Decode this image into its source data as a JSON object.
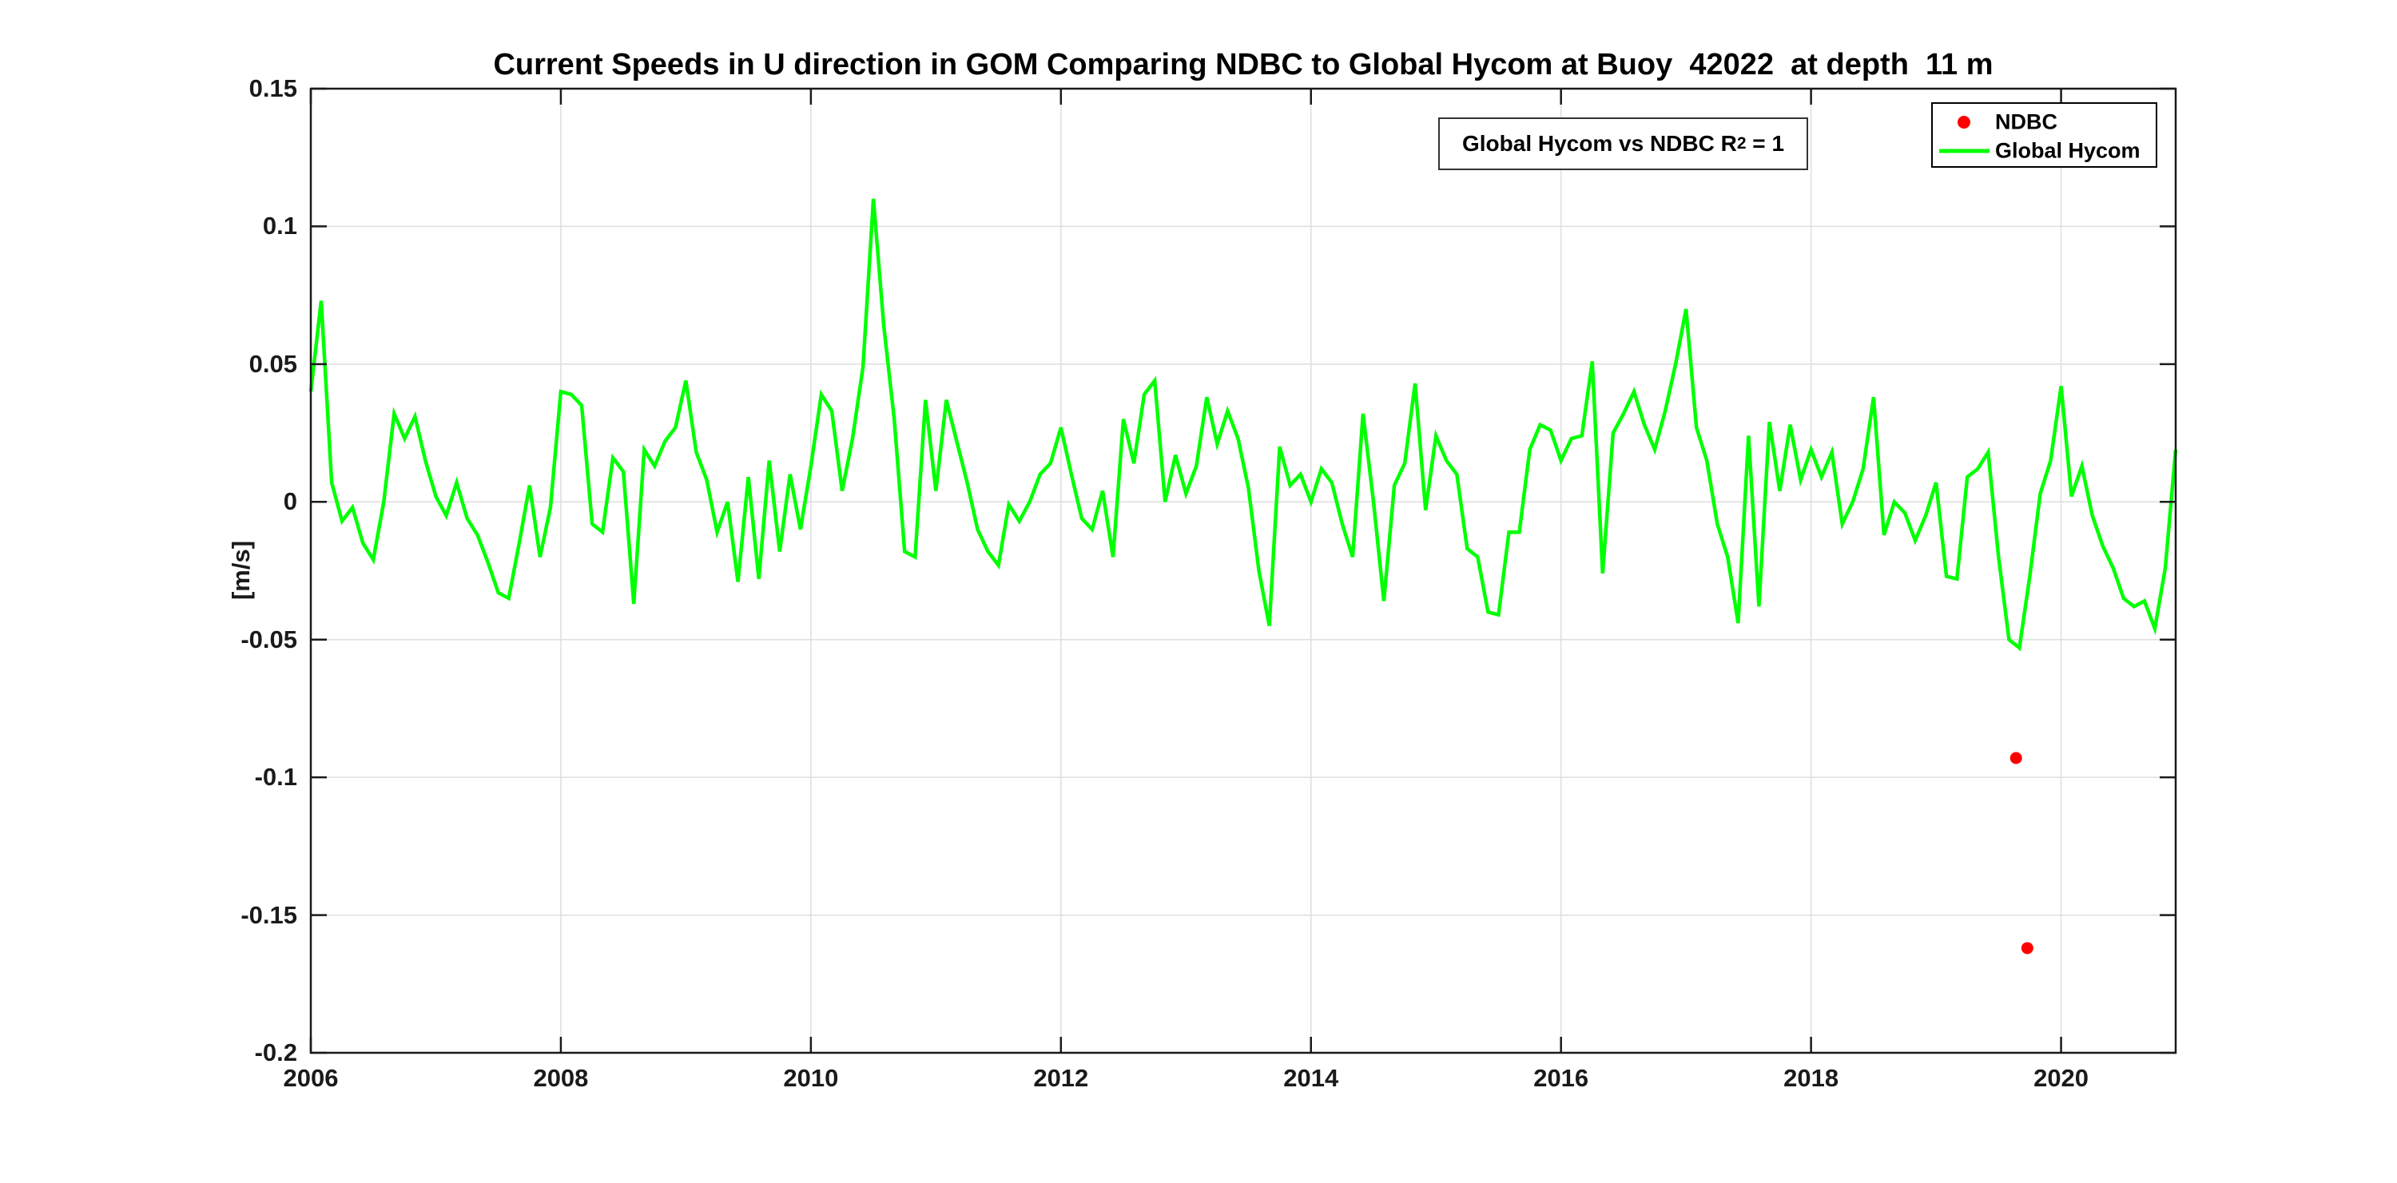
{
  "chart": {
    "title": "Current Speeds in U direction in GOM Comparing NDBC to Global Hycom at Buoy  42022  at depth  11 m",
    "ylabel": "[m/s]",
    "annotation": {
      "prefix": "Global Hycom vs NDBC R",
      "sup": "2",
      "suffix": " = 1"
    }
  },
  "chart_data": {
    "type": "line",
    "title": "Current Speeds in U direction in GOM Comparing NDBC to Global Hycom at Buoy  42022  at depth  11 m",
    "xlabel": "",
    "ylabel": "[m/s]",
    "xlim": [
      2006,
      2020.9167
    ],
    "ylim": [
      -0.2,
      0.15
    ],
    "grid": true,
    "legend_position": "top-right",
    "colors": {
      "grid": "#dedede",
      "axis": "#1a1a1a",
      "ndbc": "#ff0000",
      "hycom": "#00ff00",
      "background": "#ffffff"
    },
    "x_ticks": [
      {
        "v": 2006,
        "label": "2006"
      },
      {
        "v": 2008,
        "label": "2008"
      },
      {
        "v": 2010,
        "label": "2010"
      },
      {
        "v": 2012,
        "label": "2012"
      },
      {
        "v": 2014,
        "label": "2014"
      },
      {
        "v": 2016,
        "label": "2016"
      },
      {
        "v": 2018,
        "label": "2018"
      },
      {
        "v": 2020,
        "label": "2020"
      }
    ],
    "y_ticks": [
      {
        "v": 0.15,
        "label": "0.15"
      },
      {
        "v": 0.1,
        "label": "0.1"
      },
      {
        "v": 0.05,
        "label": "0.05"
      },
      {
        "v": 0,
        "label": "0"
      },
      {
        "v": -0.05,
        "label": "-0.05"
      },
      {
        "v": -0.1,
        "label": "-0.1"
      },
      {
        "v": -0.15,
        "label": "-0.15"
      },
      {
        "v": -0.2,
        "label": "-0.2"
      }
    ],
    "series": [
      {
        "name": "NDBC",
        "type": "scatter",
        "color": "#ff0000",
        "marker_radius": 7.5,
        "points": [
          [
            2019.64,
            -0.093
          ],
          [
            2019.73,
            -0.162
          ]
        ]
      },
      {
        "name": "Global Hycom",
        "type": "line",
        "color": "#00ff00",
        "line_width": 4.5,
        "x_start_year": 2006,
        "x_step_months": 1,
        "values": [
          0.04,
          0.073,
          0.007,
          -0.007,
          -0.002,
          -0.015,
          -0.021,
          0.0,
          0.032,
          0.023,
          0.031,
          0.015,
          0.002,
          -0.005,
          0.007,
          -0.006,
          -0.012,
          -0.022,
          -0.033,
          -0.035,
          -0.015,
          0.006,
          -0.02,
          -0.002,
          0.04,
          0.039,
          0.035,
          -0.008,
          -0.011,
          0.016,
          0.011,
          -0.037,
          0.019,
          0.013,
          0.022,
          0.027,
          0.044,
          0.018,
          0.008,
          -0.011,
          0.0,
          -0.029,
          0.009,
          -0.028,
          0.015,
          -0.018,
          0.01,
          -0.01,
          0.013,
          0.039,
          0.033,
          0.004,
          0.023,
          0.049,
          0.11,
          0.064,
          0.03,
          -0.018,
          -0.02,
          0.037,
          0.004,
          0.037,
          0.022,
          0.007,
          -0.01,
          -0.018,
          -0.023,
          -0.001,
          -0.007,
          0.0,
          0.01,
          0.014,
          0.027,
          0.01,
          -0.006,
          -0.01,
          0.004,
          -0.02,
          0.03,
          0.014,
          0.039,
          0.044,
          0.0,
          0.017,
          0.003,
          0.013,
          0.038,
          0.021,
          0.033,
          0.023,
          0.005,
          -0.025,
          -0.045,
          0.02,
          0.006,
          0.01,
          0.0,
          0.012,
          0.007,
          -0.008,
          -0.02,
          0.032,
          0.0,
          -0.036,
          0.006,
          0.014,
          0.043,
          -0.003,
          0.024,
          0.015,
          0.01,
          -0.017,
          -0.02,
          -0.04,
          -0.041,
          -0.011,
          -0.011,
          0.019,
          0.028,
          0.026,
          0.015,
          0.023,
          0.024,
          0.051,
          -0.026,
          0.025,
          0.032,
          0.04,
          0.028,
          0.019,
          0.033,
          0.05,
          0.07,
          0.027,
          0.015,
          -0.008,
          -0.02,
          -0.044,
          0.024,
          -0.038,
          0.029,
          0.004,
          0.028,
          0.008,
          0.019,
          0.009,
          0.018,
          -0.008,
          0.0,
          0.012,
          0.038,
          -0.012,
          0.0,
          -0.004,
          -0.014,
          -0.005,
          0.007,
          -0.027,
          -0.028,
          0.009,
          0.012,
          0.018,
          -0.02,
          -0.05,
          -0.053,
          -0.027,
          0.003,
          0.015,
          0.042,
          0.002,
          0.013,
          -0.005,
          -0.016,
          -0.024,
          -0.035,
          -0.038,
          -0.036,
          -0.046,
          -0.024,
          0.019
        ]
      }
    ]
  }
}
